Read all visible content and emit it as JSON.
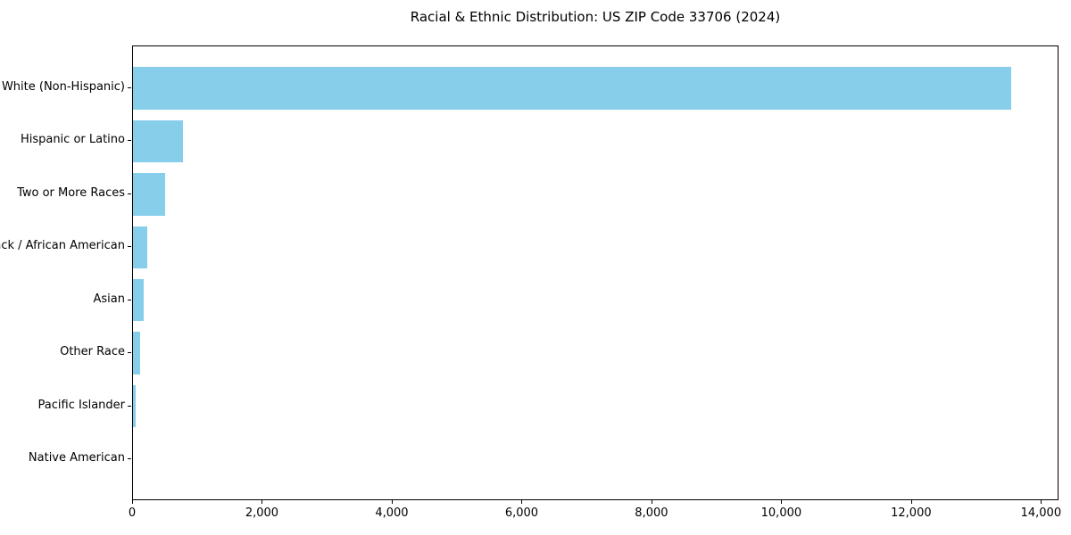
{
  "chart_data": {
    "type": "bar",
    "orientation": "horizontal",
    "title": "Racial & Ethnic Distribution: US ZIP Code 33706 (2024)",
    "categories": [
      "White (Non-Hispanic)",
      "Hispanic or Latino",
      "Two or More Races",
      "Black / African American",
      "Asian",
      "Other Race",
      "Pacific Islander",
      "Native American"
    ],
    "values": [
      13530,
      775,
      490,
      215,
      160,
      105,
      40,
      0
    ],
    "xlabel": "",
    "ylabel": "",
    "xlim": [
      0,
      14270
    ],
    "xticks": [
      0,
      2000,
      4000,
      6000,
      8000,
      10000,
      12000,
      14000
    ],
    "xtick_labels": [
      "0",
      "2,000",
      "4,000",
      "6,000",
      "8,000",
      "10,000",
      "12,000",
      "14,000"
    ],
    "grid": false,
    "legend": null,
    "bar_color": "#87CEEB",
    "axis_color": "#000000",
    "text_color": "#000000",
    "background_color": "#ffffff"
  }
}
